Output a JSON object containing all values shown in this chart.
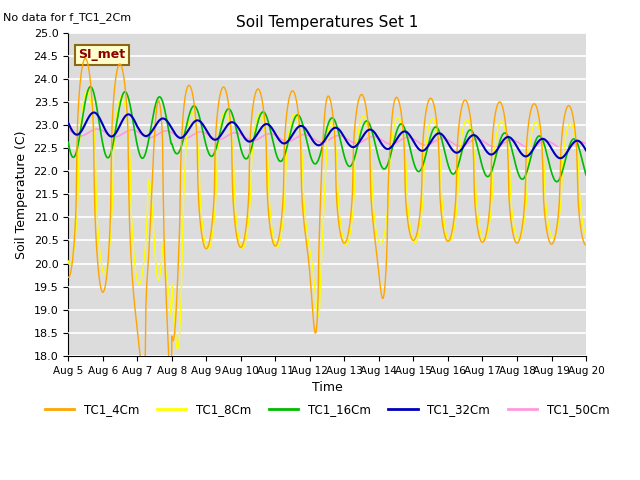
{
  "title": "Soil Temperatures Set 1",
  "no_data_text": "No data for f_TC1_2Cm",
  "si_met_label": "SI_met",
  "xlabel": "Time",
  "ylabel": "Soil Temperature (C)",
  "ylim": [
    18.0,
    25.0
  ],
  "yticks": [
    18.0,
    18.5,
    19.0,
    19.5,
    20.0,
    20.5,
    21.0,
    21.5,
    22.0,
    22.5,
    23.0,
    23.5,
    24.0,
    24.5,
    25.0
  ],
  "xtick_labels": [
    "Aug 5",
    "Aug 6",
    "Aug 7",
    "Aug 8",
    "Aug 9",
    "Aug 10",
    "Aug 11",
    "Aug 12",
    "Aug 13",
    "Aug 14",
    "Aug 15",
    "Aug 16",
    "Aug 17",
    "Aug 18",
    "Aug 19",
    "Aug 20"
  ],
  "series": {
    "TC1_4Cm": {
      "color": "#FFA500",
      "lw": 1.0
    },
    "TC1_8Cm": {
      "color": "#FFFF00",
      "lw": 1.0
    },
    "TC1_16Cm": {
      "color": "#00BB00",
      "lw": 1.2
    },
    "TC1_32Cm": {
      "color": "#0000BB",
      "lw": 1.5
    },
    "TC1_50Cm": {
      "color": "#FF99DD",
      "lw": 1.2
    }
  },
  "legend_entries": [
    "TC1_4Cm",
    "TC1_8Cm",
    "TC1_16Cm",
    "TC1_32Cm",
    "TC1_50Cm"
  ],
  "legend_colors": [
    "#FFA500",
    "#FFFF00",
    "#00BB00",
    "#0000BB",
    "#FF99DD"
  ],
  "bg_color": "#DCDCDC",
  "fig_bg": "#FFFFFF"
}
